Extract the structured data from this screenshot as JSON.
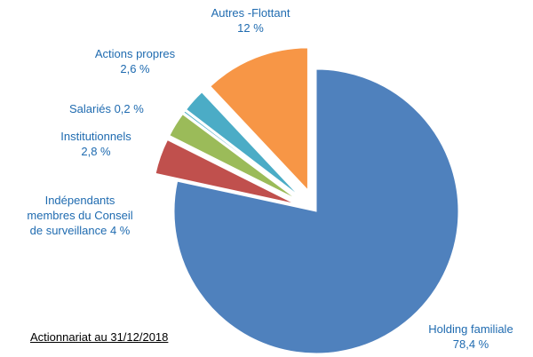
{
  "chart_data": {
    "type": "pie",
    "exploded": true,
    "slices": [
      {
        "name": "Holding familiale",
        "value": 78.4,
        "label": "78,4 %",
        "color": "#4f81bd"
      },
      {
        "name": "Indépendants membres du Conseil de surveillance",
        "value": 4,
        "label": "4 %",
        "color": "#c0504d"
      },
      {
        "name": "Institutionnels",
        "value": 2.8,
        "label": "2,8 %",
        "color": "#9bbb59"
      },
      {
        "name": "Salariés",
        "value": 0.2,
        "label": "0,2 %",
        "color": "#4bacc6"
      },
      {
        "name": "Actions propres",
        "value": 2.6,
        "label": "2,6 %",
        "color": "#4bacc6"
      },
      {
        "name": "Autres -Flottant",
        "value": 12,
        "label": "12  %",
        "color": "#f79646"
      }
    ],
    "caption": "Actionnariat au 31/12/2018"
  },
  "labels": {
    "autres_line1": "Autres -Flottant",
    "autres_line2": "12  %",
    "actions_line1": "Actions propres",
    "actions_line2": "2,6 %",
    "salaries": "Salariés 0,2 %",
    "institutionnels_line1": "Institutionnels",
    "institutionnels_line2": "2,8 %",
    "independants_line1": "Indépendants",
    "independants_line2": "membres du Conseil",
    "independants_line3": "de surveillance  4 %",
    "holding_line1": "Holding familiale",
    "holding_line2": "78,4 %"
  }
}
